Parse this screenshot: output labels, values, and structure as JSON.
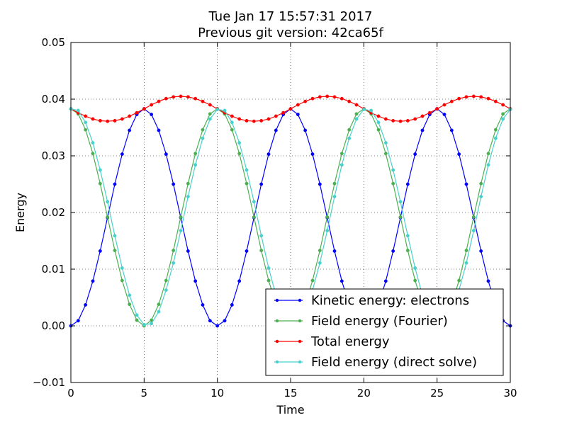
{
  "chart_data": {
    "type": "line",
    "title_lines": [
      "Tue Jan 17 15:57:31 2017",
      "Previous git version: 42ca65f"
    ],
    "xlabel": "Time",
    "ylabel": "Energy",
    "xlim": [
      0,
      30
    ],
    "ylim": [
      -0.01,
      0.05
    ],
    "x_ticks": [
      0,
      5,
      10,
      15,
      20,
      25,
      30
    ],
    "x_tick_labels": [
      "0",
      "5",
      "10",
      "15",
      "20",
      "25",
      "30"
    ],
    "y_ticks": [
      -0.01,
      0.0,
      0.01,
      0.02,
      0.03,
      0.04,
      0.05
    ],
    "y_tick_labels": [
      "−0.01",
      "0.00",
      "0.01",
      "0.02",
      "0.03",
      "0.04",
      "0.05"
    ],
    "grid": true,
    "legend_position": "lower-right",
    "series": [
      {
        "name": "Kinetic energy: electrons",
        "color": "#0000ff",
        "x": [
          0.0,
          0.5,
          1.0,
          1.5,
          2.0,
          2.5,
          3.0,
          3.5,
          4.0,
          4.5,
          5.0,
          5.5,
          6.0,
          6.5,
          7.0,
          7.5,
          8.0,
          8.5,
          9.0,
          9.5,
          10.0,
          10.5,
          11.0,
          11.5,
          12.0,
          12.5,
          13.0,
          13.5,
          14.0,
          14.5,
          15.0,
          15.5,
          16.0,
          16.5,
          17.0,
          17.5,
          18.0,
          18.5,
          19.0,
          19.5,
          20.0,
          20.5,
          21.0,
          21.5,
          22.0,
          22.5,
          23.0,
          23.5,
          24.0,
          24.5,
          25.0,
          25.5,
          26.0,
          26.5,
          27.0,
          27.5,
          28.0,
          28.5,
          29.0,
          29.5,
          30.0
        ],
        "values": [
          0.0,
          0.0009,
          0.0037,
          0.0079,
          0.0132,
          0.0191,
          0.025,
          0.0303,
          0.0345,
          0.0373,
          0.0383,
          0.0373,
          0.0345,
          0.0303,
          0.025,
          0.0191,
          0.0132,
          0.0079,
          0.0037,
          0.0009,
          0.0,
          0.0009,
          0.0037,
          0.0079,
          0.0132,
          0.0191,
          0.025,
          0.0303,
          0.0345,
          0.0373,
          0.0383,
          0.0373,
          0.0345,
          0.0303,
          0.025,
          0.0191,
          0.0132,
          0.0079,
          0.0037,
          0.0009,
          0.0,
          0.0009,
          0.0037,
          0.0079,
          0.0132,
          0.0191,
          0.025,
          0.0303,
          0.0345,
          0.0373,
          0.0383,
          0.0373,
          0.0345,
          0.0303,
          0.025,
          0.0191,
          0.0132,
          0.0079,
          0.0037,
          0.0009,
          0.0
        ]
      },
      {
        "name": "Field energy (Fourier)",
        "color": "#4caf50",
        "x": [
          0.0,
          0.5,
          1.0,
          1.5,
          2.0,
          2.5,
          3.0,
          3.5,
          4.0,
          4.5,
          5.0,
          5.5,
          6.0,
          6.5,
          7.0,
          7.5,
          8.0,
          8.5,
          9.0,
          9.5,
          10.0,
          10.5,
          11.0,
          11.5,
          12.0,
          12.5,
          13.0,
          13.5,
          14.0,
          14.5,
          15.0,
          15.5,
          16.0,
          16.5,
          17.0,
          17.5,
          18.0,
          18.5,
          19.0,
          19.5,
          20.0,
          20.5,
          21.0,
          21.5,
          22.0,
          22.5,
          23.0,
          23.5,
          24.0,
          24.5,
          25.0,
          25.5,
          26.0,
          26.5,
          27.0,
          27.5,
          28.0,
          28.5,
          29.0,
          29.5,
          30.0
        ],
        "values": [
          0.0383,
          0.0374,
          0.0346,
          0.0304,
          0.0251,
          0.0192,
          0.0133,
          0.008,
          0.0038,
          0.001,
          0.0,
          0.001,
          0.0038,
          0.008,
          0.0133,
          0.0192,
          0.0251,
          0.0304,
          0.0346,
          0.0374,
          0.0383,
          0.0374,
          0.0346,
          0.0304,
          0.0251,
          0.0192,
          0.0133,
          0.008,
          0.0038,
          0.001,
          0.0,
          0.001,
          0.0038,
          0.008,
          0.0133,
          0.0192,
          0.0251,
          0.0304,
          0.0346,
          0.0374,
          0.0383,
          0.0374,
          0.0346,
          0.0304,
          0.0251,
          0.0192,
          0.0133,
          0.008,
          0.0038,
          0.001,
          0.0,
          0.001,
          0.0038,
          0.008,
          0.0133,
          0.0192,
          0.0251,
          0.0304,
          0.0346,
          0.0374,
          0.0383
        ]
      },
      {
        "name": "Total energy",
        "color": "#ff0000",
        "x": [
          0.0,
          0.5,
          1.0,
          1.5,
          2.0,
          2.5,
          3.0,
          3.5,
          4.0,
          4.5,
          5.0,
          5.5,
          6.0,
          6.5,
          7.0,
          7.5,
          8.0,
          8.5,
          9.0,
          9.5,
          10.0,
          10.5,
          11.0,
          11.5,
          12.0,
          12.5,
          13.0,
          13.5,
          14.0,
          14.5,
          15.0,
          15.5,
          16.0,
          16.5,
          17.0,
          17.5,
          18.0,
          18.5,
          19.0,
          19.5,
          20.0,
          20.5,
          21.0,
          21.5,
          22.0,
          22.5,
          23.0,
          23.5,
          24.0,
          24.5,
          25.0,
          25.5,
          26.0,
          26.5,
          27.0,
          27.5,
          28.0,
          28.5,
          29.0,
          29.5,
          30.0
        ],
        "values": [
          0.0383,
          0.0376,
          0.037,
          0.0365,
          0.0362,
          0.0361,
          0.0362,
          0.0365,
          0.037,
          0.0376,
          0.0383,
          0.039,
          0.0396,
          0.0401,
          0.0404,
          0.0405,
          0.0404,
          0.0401,
          0.0396,
          0.039,
          0.0383,
          0.0376,
          0.037,
          0.0365,
          0.0362,
          0.0361,
          0.0362,
          0.0365,
          0.037,
          0.0376,
          0.0383,
          0.039,
          0.0396,
          0.0401,
          0.0404,
          0.0405,
          0.0404,
          0.0401,
          0.0396,
          0.039,
          0.0383,
          0.0376,
          0.037,
          0.0365,
          0.0362,
          0.0361,
          0.0362,
          0.0365,
          0.037,
          0.0376,
          0.0383,
          0.039,
          0.0396,
          0.0401,
          0.0404,
          0.0405,
          0.0404,
          0.0401,
          0.0396,
          0.039,
          0.0383
        ]
      },
      {
        "name": "Field energy (direct solve)",
        "color": "#48d1cc",
        "x": [
          0.0,
          0.5,
          1.0,
          1.5,
          2.0,
          2.5,
          3.0,
          3.5,
          4.0,
          4.5,
          5.0,
          5.5,
          6.0,
          6.5,
          7.0,
          7.5,
          8.0,
          8.5,
          9.0,
          9.5,
          10.0,
          10.5,
          11.0,
          11.5,
          12.0,
          12.5,
          13.0,
          13.5,
          14.0,
          14.5,
          15.0,
          15.5,
          16.0,
          16.5,
          17.0,
          17.5,
          18.0,
          18.5,
          19.0,
          19.5,
          20.0,
          20.5,
          21.0,
          21.5,
          22.0,
          22.5,
          23.0,
          23.5,
          24.0,
          24.5,
          25.0,
          25.5,
          26.0,
          26.5,
          27.0,
          27.5,
          28.0,
          28.5,
          29.0,
          29.5,
          30.0
        ],
        "values": [
          0.0383,
          0.038,
          0.0359,
          0.0323,
          0.0275,
          0.0219,
          0.0159,
          0.0102,
          0.0054,
          0.0019,
          0.0002,
          0.0004,
          0.0025,
          0.0063,
          0.0111,
          0.0168,
          0.0228,
          0.0284,
          0.0331,
          0.0365,
          0.0382,
          0.038,
          0.0359,
          0.0323,
          0.0275,
          0.0219,
          0.0159,
          0.0102,
          0.0054,
          0.0019,
          0.0002,
          0.0004,
          0.0025,
          0.0063,
          0.0111,
          0.0168,
          0.0228,
          0.0284,
          0.0331,
          0.0365,
          0.0382,
          0.038,
          0.0359,
          0.0323,
          0.0275,
          0.0219,
          0.0159,
          0.0102,
          0.0054,
          0.0019,
          0.0002,
          0.0004,
          0.0025,
          0.0063,
          0.0111,
          0.0168,
          0.0228,
          0.0284,
          0.0331,
          0.0365,
          0.0382
        ]
      }
    ]
  }
}
